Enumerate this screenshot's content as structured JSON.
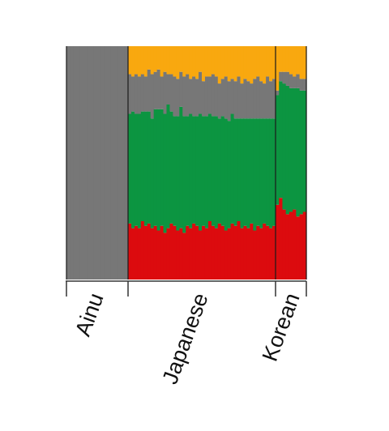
{
  "chart_data": {
    "type": "stacked-bar",
    "title": "",
    "xlabel": "",
    "ylabel": "",
    "ylim": [
      0,
      1
    ],
    "component_order_bottom_to_top": [
      "red",
      "green",
      "gray",
      "orange"
    ],
    "colors": {
      "red": "#dc0b0e",
      "green": "#0c9541",
      "gray": "#777777",
      "orange": "#f9a80f"
    },
    "groups": [
      {
        "label": "Ainu",
        "individuals": 18,
        "red": [
          0,
          0,
          0,
          0,
          0,
          0,
          0,
          0,
          0,
          0,
          0,
          0,
          0,
          0,
          0,
          0,
          0,
          0
        ],
        "green": [
          0,
          0,
          0,
          0,
          0,
          0,
          0,
          0,
          0,
          0,
          0,
          0,
          0,
          0,
          0,
          0,
          0,
          0
        ],
        "gray": [
          1,
          1,
          1,
          1,
          1,
          1,
          1,
          1,
          1,
          1,
          1,
          1,
          1,
          1,
          1,
          1,
          1,
          1
        ]
      },
      {
        "label": "Japanese",
        "individuals": 46,
        "red": [
          0.24,
          0.22,
          0.23,
          0.22,
          0.25,
          0.23,
          0.24,
          0.22,
          0.23,
          0.21,
          0.23,
          0.2,
          0.22,
          0.24,
          0.23,
          0.21,
          0.22,
          0.2,
          0.23,
          0.22,
          0.24,
          0.23,
          0.21,
          0.23,
          0.22,
          0.25,
          0.23,
          0.22,
          0.24,
          0.23,
          0.21,
          0.22,
          0.24,
          0.23,
          0.25,
          0.22,
          0.23,
          0.22,
          0.24,
          0.21,
          0.23,
          0.22,
          0.24,
          0.23,
          0.22,
          0.23
        ],
        "green": [
          0.47,
          0.5,
          0.48,
          0.49,
          0.47,
          0.49,
          0.48,
          0.47,
          0.5,
          0.52,
          0.5,
          0.51,
          0.53,
          0.48,
          0.47,
          0.49,
          0.52,
          0.5,
          0.47,
          0.49,
          0.46,
          0.47,
          0.5,
          0.47,
          0.48,
          0.46,
          0.47,
          0.48,
          0.45,
          0.47,
          0.48,
          0.46,
          0.47,
          0.46,
          0.44,
          0.47,
          0.46,
          0.47,
          0.45,
          0.48,
          0.46,
          0.47,
          0.45,
          0.46,
          0.47,
          0.46
        ],
        "gray": [
          0.17,
          0.15,
          0.17,
          0.16,
          0.16,
          0.15,
          0.18,
          0.19,
          0.16,
          0.17,
          0.14,
          0.18,
          0.13,
          0.16,
          0.17,
          0.16,
          0.15,
          0.17,
          0.18,
          0.15,
          0.17,
          0.16,
          0.18,
          0.15,
          0.17,
          0.16,
          0.18,
          0.17,
          0.15,
          0.16,
          0.18,
          0.17,
          0.15,
          0.16,
          0.18,
          0.15,
          0.17,
          0.16,
          0.15,
          0.17,
          0.18,
          0.16,
          0.15,
          0.18,
          0.16,
          0.17
        ]
      },
      {
        "label": "Korean",
        "individuals": 9,
        "red": [
          0.32,
          0.35,
          0.3,
          0.28,
          0.29,
          0.3,
          0.27,
          0.28,
          0.29
        ],
        "green": [
          0.47,
          0.5,
          0.54,
          0.55,
          0.53,
          0.52,
          0.55,
          0.53,
          0.52
        ],
        "gray": [
          0.02,
          0.04,
          0.05,
          0.06,
          0.06,
          0.05,
          0.06,
          0.05,
          0.05
        ]
      }
    ]
  }
}
